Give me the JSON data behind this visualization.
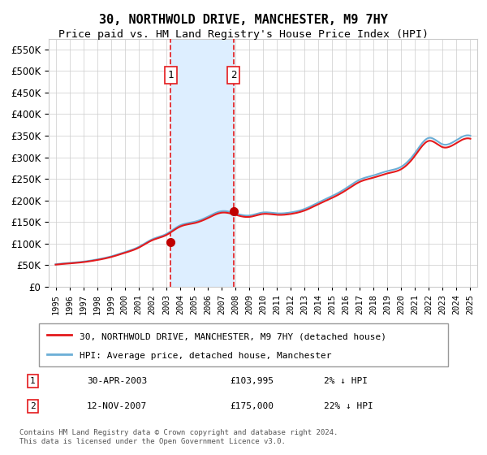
{
  "title": "30, NORTHWOLD DRIVE, MANCHESTER, M9 7HY",
  "subtitle": "Price paid vs. HM Land Registry's House Price Index (HPI)",
  "legend_line1": "30, NORTHWOLD DRIVE, MANCHESTER, M9 7HY (detached house)",
  "legend_line2": "HPI: Average price, detached house, Manchester",
  "purchase1_label": "1",
  "purchase1_date": "30-APR-2003",
  "purchase1_price": "£103,995",
  "purchase1_hpi": "2% ↓ HPI",
  "purchase1_year": 2003.33,
  "purchase1_value": 103995,
  "purchase2_label": "2",
  "purchase2_date": "12-NOV-2007",
  "purchase2_price": "£175,000",
  "purchase2_hpi": "22% ↓ HPI",
  "purchase2_year": 2007.87,
  "purchase2_value": 175000,
  "note": "Contains HM Land Registry data © Crown copyright and database right 2024.\nThis data is licensed under the Open Government Licence v3.0.",
  "hpi_color": "#6baed6",
  "price_color": "#e41a1c",
  "marker_color": "#c00000",
  "vline_color": "#e41a1c",
  "shade_color": "#ddeeff",
  "ylim": [
    0,
    575000
  ],
  "yticks": [
    0,
    50000,
    100000,
    150000,
    200000,
    250000,
    300000,
    350000,
    400000,
    450000,
    500000,
    550000
  ],
  "xlim": [
    1994.5,
    2025.5
  ],
  "title_fontsize": 11,
  "subtitle_fontsize": 9.5
}
